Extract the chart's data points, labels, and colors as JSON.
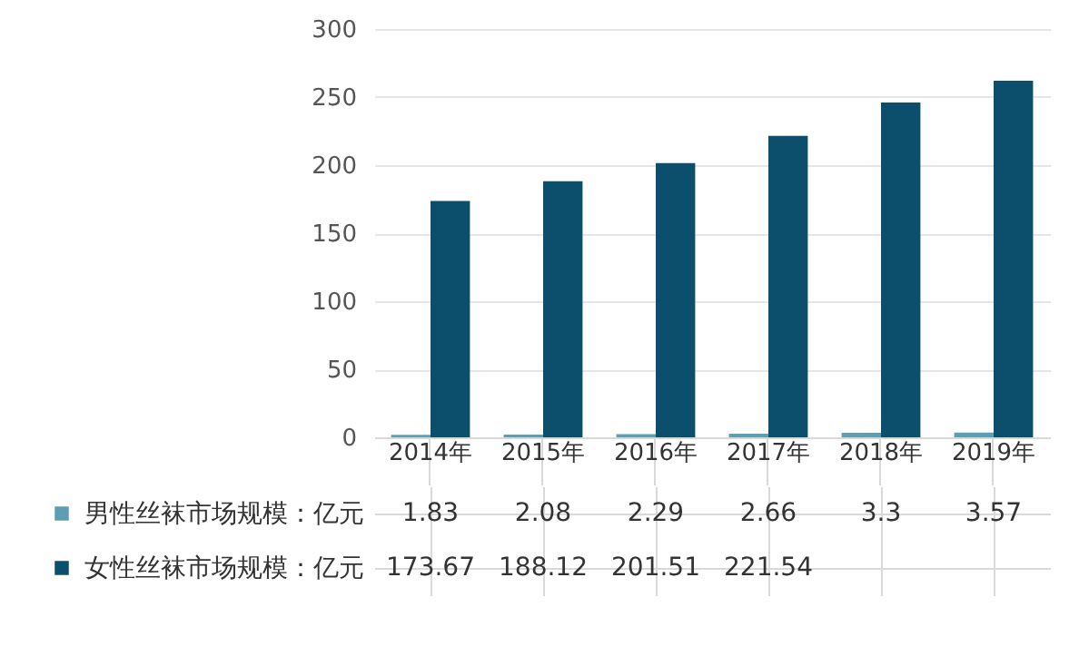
{
  "chart_data": {
    "type": "bar",
    "categories": [
      "2014年",
      "2015年",
      "2016年",
      "2017年",
      "2018年",
      "2019年"
    ],
    "series": [
      {
        "name": "男性丝袜市场规模：亿元",
        "color": "#5e9db3",
        "values": [
          1.83,
          2.08,
          2.29,
          2.66,
          3.3,
          3.57
        ],
        "value_labels": [
          "1.83",
          "2.08",
          "2.29",
          "2.66",
          "3.3",
          "3.57"
        ]
      },
      {
        "name": "女性丝袜市场规模：亿元",
        "color": "#0b4f6c",
        "values": [
          173.67,
          188.12,
          201.51,
          221.54,
          246,
          262
        ],
        "value_labels": [
          "173.67",
          "188.12",
          "201.51",
          "221.54",
          null,
          null
        ]
      }
    ],
    "legend": "bottom",
    "ylim": [
      0,
      300
    ],
    "yticks": [
      0,
      50,
      100,
      150,
      200,
      250,
      300
    ],
    "grid": "y"
  }
}
